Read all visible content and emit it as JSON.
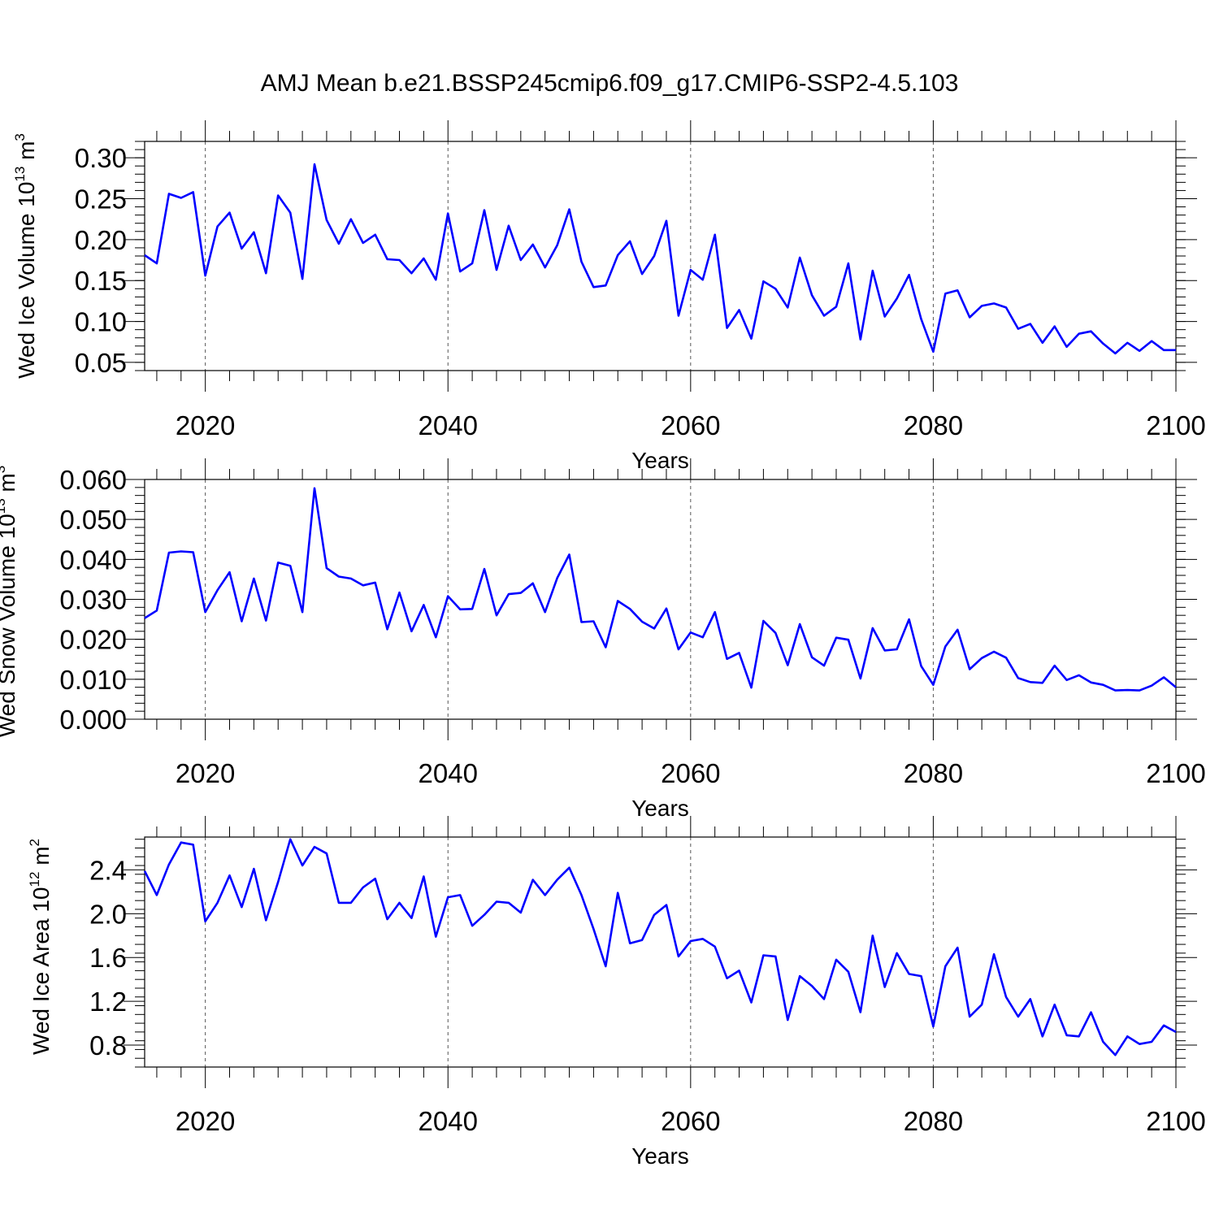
{
  "figure": {
    "title": "AMJ Mean b.e21.BSSP245cmip6.f09_g17.CMIP6-SSP2-4.5.103",
    "line_color": "#0000ff"
  },
  "chart_data": [
    {
      "type": "line",
      "ylabel_main": "Wed Ice Volume 10",
      "ylabel_exp": "13",
      "ylabel_unit": " m",
      "ylabel_unit_exp": "3",
      "xlabel": "Years",
      "xlim": [
        2015,
        2100
      ],
      "ylim": [
        0.04,
        0.32
      ],
      "xticks": [
        2020,
        2040,
        2060,
        2080,
        2100
      ],
      "xtick_labels": [
        "2020",
        "2040",
        "2060",
        "2080",
        "2100"
      ],
      "yticks": [
        0.05,
        0.1,
        0.15,
        0.2,
        0.25,
        0.3
      ],
      "ytick_labels": [
        "0.05",
        "0.10",
        "0.15",
        "0.20",
        "0.25",
        "0.30"
      ],
      "grid": "dashed vertical lines at major x ticks",
      "x": [
        2015,
        2016,
        2017,
        2018,
        2019,
        2020,
        2021,
        2022,
        2023,
        2024,
        2025,
        2026,
        2027,
        2028,
        2029,
        2030,
        2031,
        2032,
        2033,
        2034,
        2035,
        2036,
        2037,
        2038,
        2039,
        2040,
        2041,
        2042,
        2043,
        2044,
        2045,
        2046,
        2047,
        2048,
        2049,
        2050,
        2051,
        2052,
        2053,
        2054,
        2055,
        2056,
        2057,
        2058,
        2059,
        2060,
        2061,
        2062,
        2063,
        2064,
        2065,
        2066,
        2067,
        2068,
        2069,
        2070,
        2071,
        2072,
        2073,
        2074,
        2075,
        2076,
        2077,
        2078,
        2079,
        2080,
        2081,
        2082,
        2083,
        2084,
        2085,
        2086,
        2087,
        2088,
        2089,
        2090,
        2091,
        2092,
        2093,
        2094,
        2095,
        2096,
        2097,
        2098,
        2099,
        2100
      ],
      "values": [
        0.181,
        0.171,
        0.256,
        0.251,
        0.258,
        0.156,
        0.216,
        0.233,
        0.189,
        0.209,
        0.159,
        0.254,
        0.233,
        0.152,
        0.292,
        0.224,
        0.195,
        0.225,
        0.196,
        0.206,
        0.176,
        0.175,
        0.159,
        0.177,
        0.151,
        0.232,
        0.161,
        0.171,
        0.236,
        0.163,
        0.217,
        0.175,
        0.194,
        0.166,
        0.193,
        0.237,
        0.173,
        0.142,
        0.144,
        0.181,
        0.198,
        0.158,
        0.18,
        0.223,
        0.107,
        0.163,
        0.151,
        0.206,
        0.092,
        0.114,
        0.079,
        0.149,
        0.14,
        0.117,
        0.178,
        0.132,
        0.107,
        0.118,
        0.171,
        0.078,
        0.162,
        0.106,
        0.128,
        0.157,
        0.103,
        0.063,
        0.134,
        0.138,
        0.105,
        0.119,
        0.122,
        0.117,
        0.091,
        0.097,
        0.074,
        0.094,
        0.069,
        0.085,
        0.088,
        0.073,
        0.061,
        0.074,
        0.064,
        0.076,
        0.065,
        0.065
      ]
    },
    {
      "type": "line",
      "ylabel_main": "Wed Snow Volume 10",
      "ylabel_exp": "13",
      "ylabel_unit": " m",
      "ylabel_unit_exp": "3",
      "xlabel": "Years",
      "xlim": [
        2015,
        2100
      ],
      "ylim": [
        0.0,
        0.06
      ],
      "xticks": [
        2020,
        2040,
        2060,
        2080,
        2100
      ],
      "xtick_labels": [
        "2020",
        "2040",
        "2060",
        "2080",
        "2100"
      ],
      "yticks": [
        0.0,
        0.01,
        0.02,
        0.03,
        0.04,
        0.05,
        0.06
      ],
      "ytick_labels": [
        "0.000",
        "0.010",
        "0.020",
        "0.030",
        "0.040",
        "0.050",
        "0.060"
      ],
      "grid": "dashed vertical lines at major x ticks",
      "x": [
        2015,
        2016,
        2017,
        2018,
        2019,
        2020,
        2021,
        2022,
        2023,
        2024,
        2025,
        2026,
        2027,
        2028,
        2029,
        2030,
        2031,
        2032,
        2033,
        2034,
        2035,
        2036,
        2037,
        2038,
        2039,
        2040,
        2041,
        2042,
        2043,
        2044,
        2045,
        2046,
        2047,
        2048,
        2049,
        2050,
        2051,
        2052,
        2053,
        2054,
        2055,
        2056,
        2057,
        2058,
        2059,
        2060,
        2061,
        2062,
        2063,
        2064,
        2065,
        2066,
        2067,
        2068,
        2069,
        2070,
        2071,
        2072,
        2073,
        2074,
        2075,
        2076,
        2077,
        2078,
        2079,
        2080,
        2081,
        2082,
        2083,
        2084,
        2085,
        2086,
        2087,
        2088,
        2089,
        2090,
        2091,
        2092,
        2093,
        2094,
        2095,
        2096,
        2097,
        2098,
        2099,
        2100
      ],
      "values": [
        0.0253,
        0.0272,
        0.0417,
        0.042,
        0.0418,
        0.0268,
        0.0323,
        0.0368,
        0.0245,
        0.0352,
        0.0247,
        0.0392,
        0.0384,
        0.0268,
        0.0578,
        0.0378,
        0.0357,
        0.0352,
        0.0335,
        0.0342,
        0.0225,
        0.0317,
        0.022,
        0.0286,
        0.0205,
        0.0308,
        0.0275,
        0.0276,
        0.0376,
        0.026,
        0.0313,
        0.0316,
        0.034,
        0.0268,
        0.0353,
        0.0412,
        0.0243,
        0.0245,
        0.018,
        0.0296,
        0.0276,
        0.0244,
        0.0227,
        0.0277,
        0.0175,
        0.0217,
        0.0205,
        0.0268,
        0.0151,
        0.0166,
        0.0079,
        0.0246,
        0.0216,
        0.0135,
        0.0238,
        0.0155,
        0.0134,
        0.0204,
        0.0199,
        0.0102,
        0.0228,
        0.0172,
        0.0175,
        0.025,
        0.0133,
        0.0086,
        0.0182,
        0.0224,
        0.0125,
        0.0153,
        0.0169,
        0.0154,
        0.0103,
        0.0093,
        0.0091,
        0.0134,
        0.0098,
        0.011,
        0.0092,
        0.0086,
        0.0072,
        0.0073,
        0.0072,
        0.0084,
        0.0105,
        0.008
      ]
    },
    {
      "type": "line",
      "ylabel_main": "Wed Ice Area 10",
      "ylabel_exp": "12",
      "ylabel_unit": " m",
      "ylabel_unit_exp": "2",
      "xlabel": "Years",
      "xlim": [
        2015,
        2100
      ],
      "ylim": [
        0.6,
        2.7
      ],
      "xticks": [
        2020,
        2040,
        2060,
        2080,
        2100
      ],
      "xtick_labels": [
        "2020",
        "2040",
        "2060",
        "2080",
        "2100"
      ],
      "yticks": [
        0.8,
        1.2,
        1.6,
        2.0,
        2.4
      ],
      "ytick_labels": [
        "0.8",
        "1.2",
        "1.6",
        "2.0",
        "2.4"
      ],
      "grid": "dashed vertical lines at major x ticks",
      "x": [
        2015,
        2016,
        2017,
        2018,
        2019,
        2020,
        2021,
        2022,
        2023,
        2024,
        2025,
        2026,
        2027,
        2028,
        2029,
        2030,
        2031,
        2032,
        2033,
        2034,
        2035,
        2036,
        2037,
        2038,
        2039,
        2040,
        2041,
        2042,
        2043,
        2044,
        2045,
        2046,
        2047,
        2048,
        2049,
        2050,
        2051,
        2052,
        2053,
        2054,
        2055,
        2056,
        2057,
        2058,
        2059,
        2060,
        2061,
        2062,
        2063,
        2064,
        2065,
        2066,
        2067,
        2068,
        2069,
        2070,
        2071,
        2072,
        2073,
        2074,
        2075,
        2076,
        2077,
        2078,
        2079,
        2080,
        2081,
        2082,
        2083,
        2084,
        2085,
        2086,
        2087,
        2088,
        2089,
        2090,
        2091,
        2092,
        2093,
        2094,
        2095,
        2096,
        2097,
        2098,
        2099,
        2100
      ],
      "values": [
        2.39,
        2.17,
        2.45,
        2.65,
        2.63,
        1.93,
        2.1,
        2.35,
        2.06,
        2.41,
        1.94,
        2.29,
        2.68,
        2.44,
        2.61,
        2.55,
        2.1,
        2.1,
        2.24,
        2.32,
        1.95,
        2.1,
        1.96,
        2.34,
        1.79,
        2.15,
        2.17,
        1.89,
        1.99,
        2.11,
        2.1,
        2.01,
        2.31,
        2.17,
        2.31,
        2.42,
        2.17,
        1.86,
        1.52,
        2.19,
        1.73,
        1.76,
        1.99,
        2.08,
        1.61,
        1.75,
        1.77,
        1.7,
        1.41,
        1.48,
        1.19,
        1.62,
        1.61,
        1.03,
        1.43,
        1.34,
        1.22,
        1.58,
        1.47,
        1.1,
        1.8,
        1.33,
        1.64,
        1.45,
        1.43,
        0.97,
        1.52,
        1.69,
        1.06,
        1.17,
        1.63,
        1.24,
        1.06,
        1.22,
        0.88,
        1.17,
        0.89,
        0.88,
        1.1,
        0.83,
        0.71,
        0.88,
        0.81,
        0.83,
        0.98,
        0.92
      ]
    }
  ]
}
